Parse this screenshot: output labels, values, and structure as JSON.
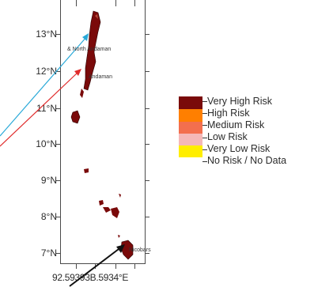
{
  "map": {
    "lat_labels": [
      "13°N",
      "12°N",
      "11°N",
      "10°N",
      "9°N",
      "8°N",
      "7°N"
    ],
    "lon_labels_text": "92.59393B.5934°E",
    "places": {
      "north_andaman": "& North Andaman",
      "middle_andaman": "Andaman",
      "nicobar": "Nicobars"
    }
  },
  "legend": {
    "items": [
      {
        "label": "Very High Risk",
        "color": "#7a0a0a"
      },
      {
        "label": "High Risk",
        "color": "#ff7f00"
      },
      {
        "label": "Medium Risk",
        "color": "#f36f4e"
      },
      {
        "label": "Low Risk",
        "color": "#f5b8b8"
      },
      {
        "label": "Very Low Risk",
        "color": "#ffee00"
      },
      {
        "label": "No Risk / No Data",
        "color": "#ffffff"
      }
    ]
  },
  "arrows": {
    "colors": {
      "blue": "#29a9d8",
      "red": "#e02b2b",
      "black": "#111111"
    }
  }
}
